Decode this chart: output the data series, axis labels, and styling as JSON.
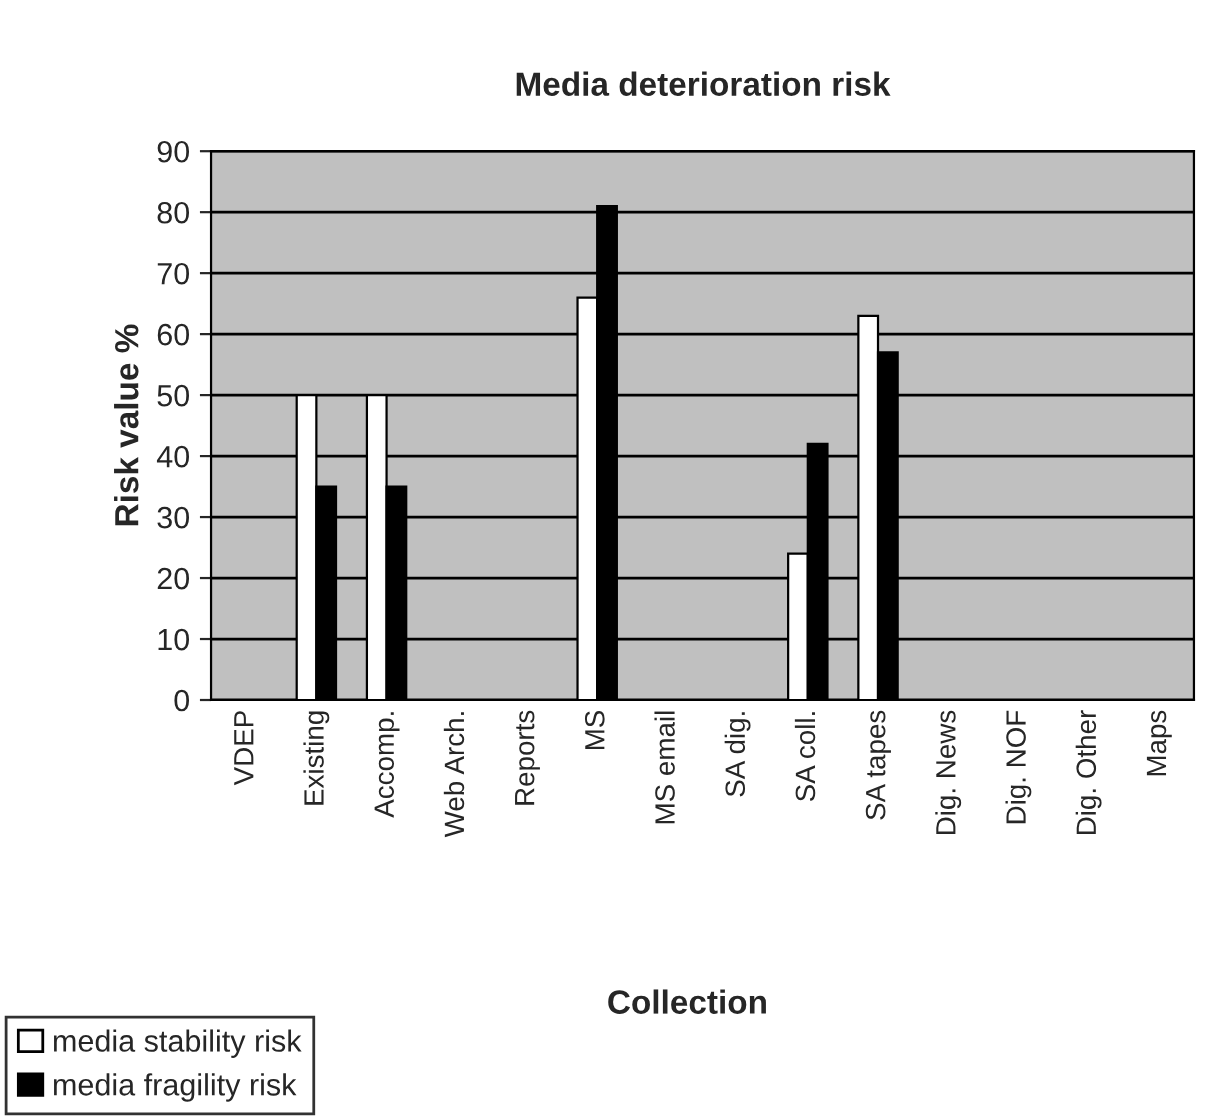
{
  "chart_data": {
    "type": "bar",
    "title": "Media deterioration risk",
    "xlabel": "Collection",
    "ylabel": "Risk value %",
    "categories": [
      "VDEP",
      "Existing",
      "Accomp.",
      "Web Arch.",
      "Reports",
      "MS",
      "MS email",
      "SA dig.",
      "SA coll.",
      "SA tapes",
      "Dig. News",
      "Dig. NOF",
      "Dig. Other",
      "Maps"
    ],
    "series": [
      {
        "name": "media stability risk",
        "color": "#ffffff",
        "values": [
          null,
          50,
          50,
          null,
          null,
          66,
          null,
          null,
          24,
          63,
          null,
          null,
          null,
          null
        ]
      },
      {
        "name": "media fragility risk",
        "color": "#000000",
        "values": [
          null,
          35,
          35,
          null,
          null,
          81,
          null,
          null,
          42,
          57,
          null,
          null,
          null,
          null
        ]
      }
    ],
    "ylim": [
      0,
      90
    ],
    "yticks": [
      0,
      10,
      20,
      30,
      40,
      50,
      60,
      70,
      80,
      90
    ],
    "grid": "y",
    "legend": "bottom left"
  }
}
